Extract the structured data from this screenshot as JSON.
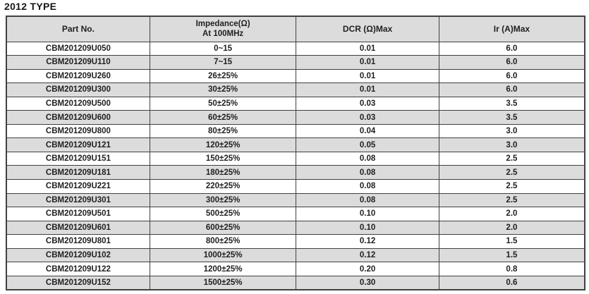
{
  "page": {
    "title": "2012 TYPE"
  },
  "colors": {
    "stripe": "#dcdcdc",
    "header_bg": "#dcdcdc",
    "border": "#404040",
    "text": "#1f1f1f"
  },
  "table": {
    "headers": {
      "part_no": "Part No.",
      "impedance_line1": "Impedance(Ω)",
      "impedance_line2": "At 100MHz",
      "dcr": "DCR (Ω)Max",
      "ir": "Ir (A)Max"
    },
    "rows": [
      [
        "CBM201209U050",
        "0~15",
        "0.01",
        "6.0"
      ],
      [
        "CBM201209U110",
        "7~15",
        "0.01",
        "6.0"
      ],
      [
        "CBM201209U260",
        "26±25%",
        "0.01",
        "6.0"
      ],
      [
        "CBM201209U300",
        "30±25%",
        "0.01",
        "6.0"
      ],
      [
        "CBM201209U500",
        "50±25%",
        "0.03",
        "3.5"
      ],
      [
        "CBM201209U600",
        "60±25%",
        "0.03",
        "3.5"
      ],
      [
        "CBM201209U800",
        "80±25%",
        "0.04",
        "3.0"
      ],
      [
        "CBM201209U121",
        "120±25%",
        "0.05",
        "3.0"
      ],
      [
        "CBM201209U151",
        "150±25%",
        "0.08",
        "2.5"
      ],
      [
        "CBM201209U181",
        "180±25%",
        "0.08",
        "2.5"
      ],
      [
        "CBM201209U221",
        "220±25%",
        "0.08",
        "2.5"
      ],
      [
        "CBM201209U301",
        "300±25%",
        "0.08",
        "2.5"
      ],
      [
        "CBM201209U501",
        "500±25%",
        "0.10",
        "2.0"
      ],
      [
        "CBM201209U601",
        "600±25%",
        "0.10",
        "2.0"
      ],
      [
        "CBM201209U801",
        "800±25%",
        "0.12",
        "1.5"
      ],
      [
        "CBM201209U102",
        "1000±25%",
        "0.12",
        "1.5"
      ],
      [
        "CBM201209U122",
        "1200±25%",
        "0.20",
        "0.8"
      ],
      [
        "CBM201209U152",
        "1500±25%",
        "0.30",
        "0.6"
      ]
    ]
  }
}
